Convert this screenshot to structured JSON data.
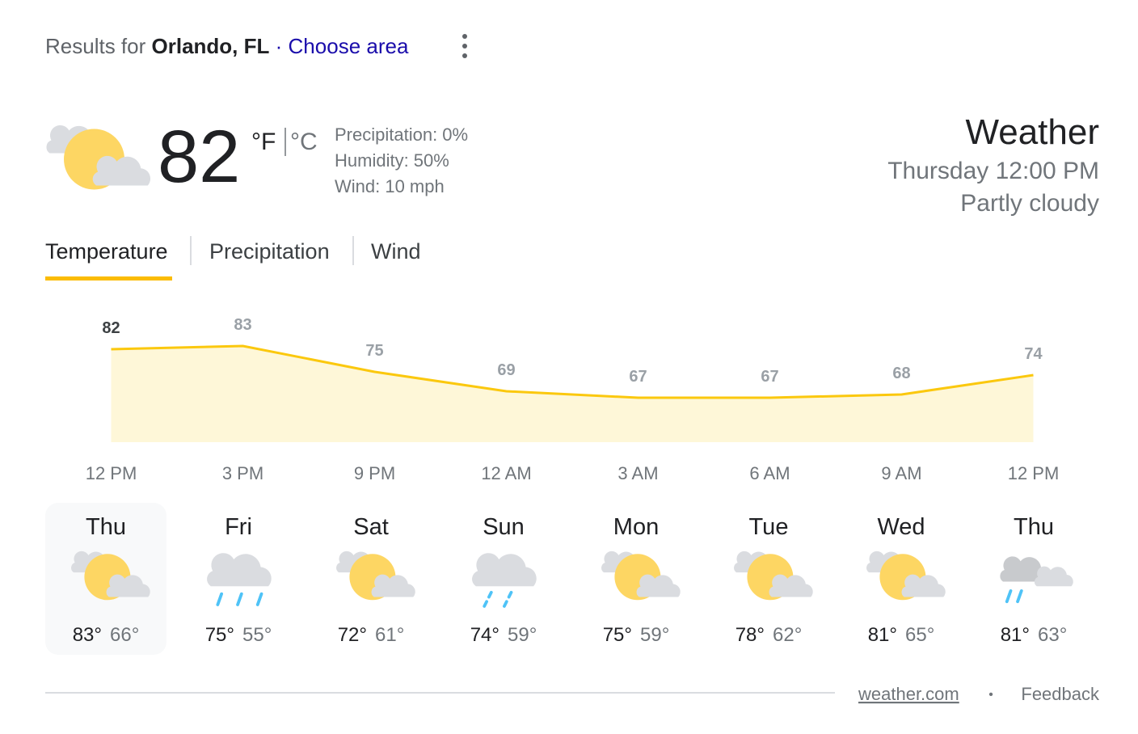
{
  "header": {
    "prefix": "Results for",
    "location": "Orlando, FL",
    "separator": "·",
    "link": "Choose area"
  },
  "current": {
    "temperature": 82,
    "unit_f": "°F",
    "unit_c": "°C",
    "details": [
      "Precipitation: 0%",
      "Humidity: 50%",
      "Wind: 10 mph"
    ],
    "title": "Weather",
    "time": "Thursday 12:00 PM",
    "condition": "Partly cloudy"
  },
  "tabs": [
    "Temperature",
    "Precipitation",
    "Wind"
  ],
  "temperature_chart": {
    "values": [
      82,
      83,
      75,
      69,
      67,
      67,
      68,
      74
    ],
    "times": [
      "12 PM",
      "3 PM",
      "9 PM",
      "12 AM",
      "3 AM",
      "6 AM",
      "9 AM",
      "12 PM"
    ]
  },
  "forecast": [
    {
      "day": "Thu",
      "high": "83°",
      "low": "66°"
    },
    {
      "day": "Fri",
      "high": "75°",
      "low": "55°"
    },
    {
      "day": "Sat",
      "high": "72°",
      "low": "61°"
    },
    {
      "day": "Sun",
      "high": "74°",
      "low": "59°"
    },
    {
      "day": "Mon",
      "high": "75°",
      "low": "59°"
    },
    {
      "day": "Tue",
      "high": "78°",
      "low": "62°"
    },
    {
      "day": "Wed",
      "high": "81°",
      "low": "65°"
    },
    {
      "day": "Thu",
      "high": "81°",
      "low": "63°"
    }
  ],
  "footer": {
    "source": "weather.com",
    "dot": "•",
    "feedback": "Feedback"
  }
}
